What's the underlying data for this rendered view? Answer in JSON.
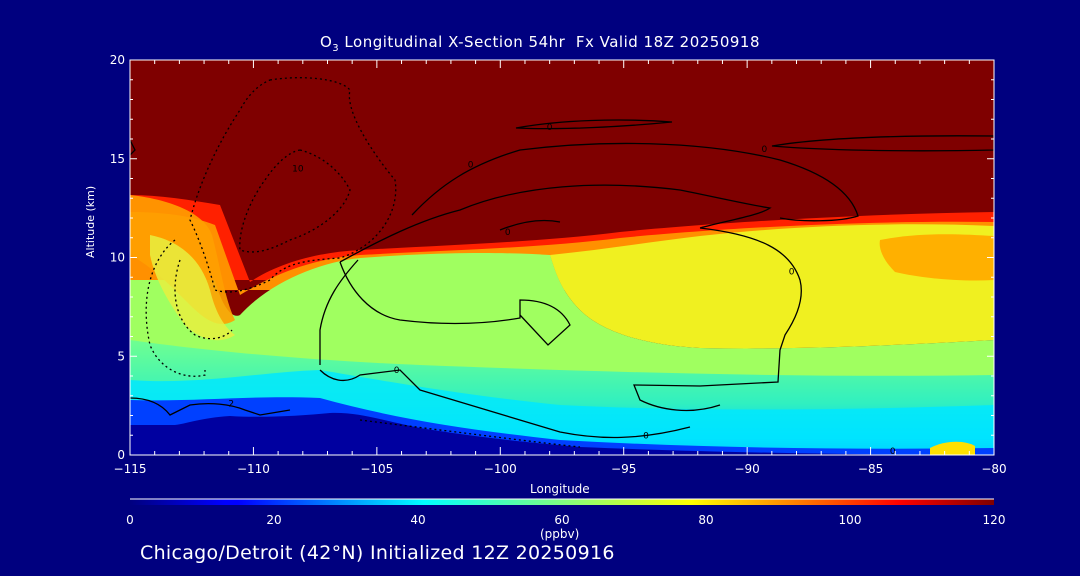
{
  "chart_data": {
    "type": "heatmap",
    "title_prefix": "O",
    "title_sub": "3",
    "title_rest": " Longitudinal X-Section 54hr  Fx Valid 18Z 20250918",
    "xlabel": "Longitude",
    "ylabel": "Altitude (km)",
    "xlim": [
      -115,
      -80
    ],
    "ylim": [
      0,
      20
    ],
    "x_ticks": [
      -115,
      -110,
      -105,
      -100,
      -95,
      -90,
      -85,
      -80
    ],
    "x_tick_labels": [
      "−115",
      "−110",
      "−105",
      "−100",
      "−95",
      "−90",
      "−85",
      "−80"
    ],
    "y_ticks": [
      0,
      5,
      10,
      15,
      20
    ],
    "y_tick_labels": [
      "0",
      "5",
      "10",
      "15",
      "20"
    ],
    "colorbar": {
      "min": 0,
      "max": 120,
      "ticks": [
        0,
        20,
        40,
        60,
        80,
        100,
        120
      ],
      "tick_labels": [
        "0",
        "20",
        "40",
        "60",
        "80",
        "100",
        "120"
      ],
      "units": "(ppbv)"
    },
    "contour_labels": [
      {
        "x": -98,
        "y": 16.6,
        "text": "0"
      },
      {
        "x": -101.2,
        "y": 14.7,
        "text": "0"
      },
      {
        "x": -89.3,
        "y": 15.5,
        "text": "0"
      },
      {
        "x": -99.7,
        "y": 11.3,
        "text": "0"
      },
      {
        "x": -88.2,
        "y": 9.3,
        "text": "0"
      },
      {
        "x": -104.2,
        "y": 4.3,
        "text": "0"
      },
      {
        "x": -94.1,
        "y": 1.0,
        "text": "0"
      },
      {
        "x": -110.9,
        "y": 2.6,
        "text": "2"
      },
      {
        "x": -108.2,
        "y": 14.5,
        "text": "10"
      },
      {
        "x": -84.1,
        "y": 0.2,
        "text": "0"
      }
    ]
  },
  "footer": "Chicago/Detroit (42°N) Initialized 12Z 20250916",
  "colors": {
    "background": "#00007f",
    "stratosphere": "#7f0000",
    "ground": "#0000a0"
  }
}
